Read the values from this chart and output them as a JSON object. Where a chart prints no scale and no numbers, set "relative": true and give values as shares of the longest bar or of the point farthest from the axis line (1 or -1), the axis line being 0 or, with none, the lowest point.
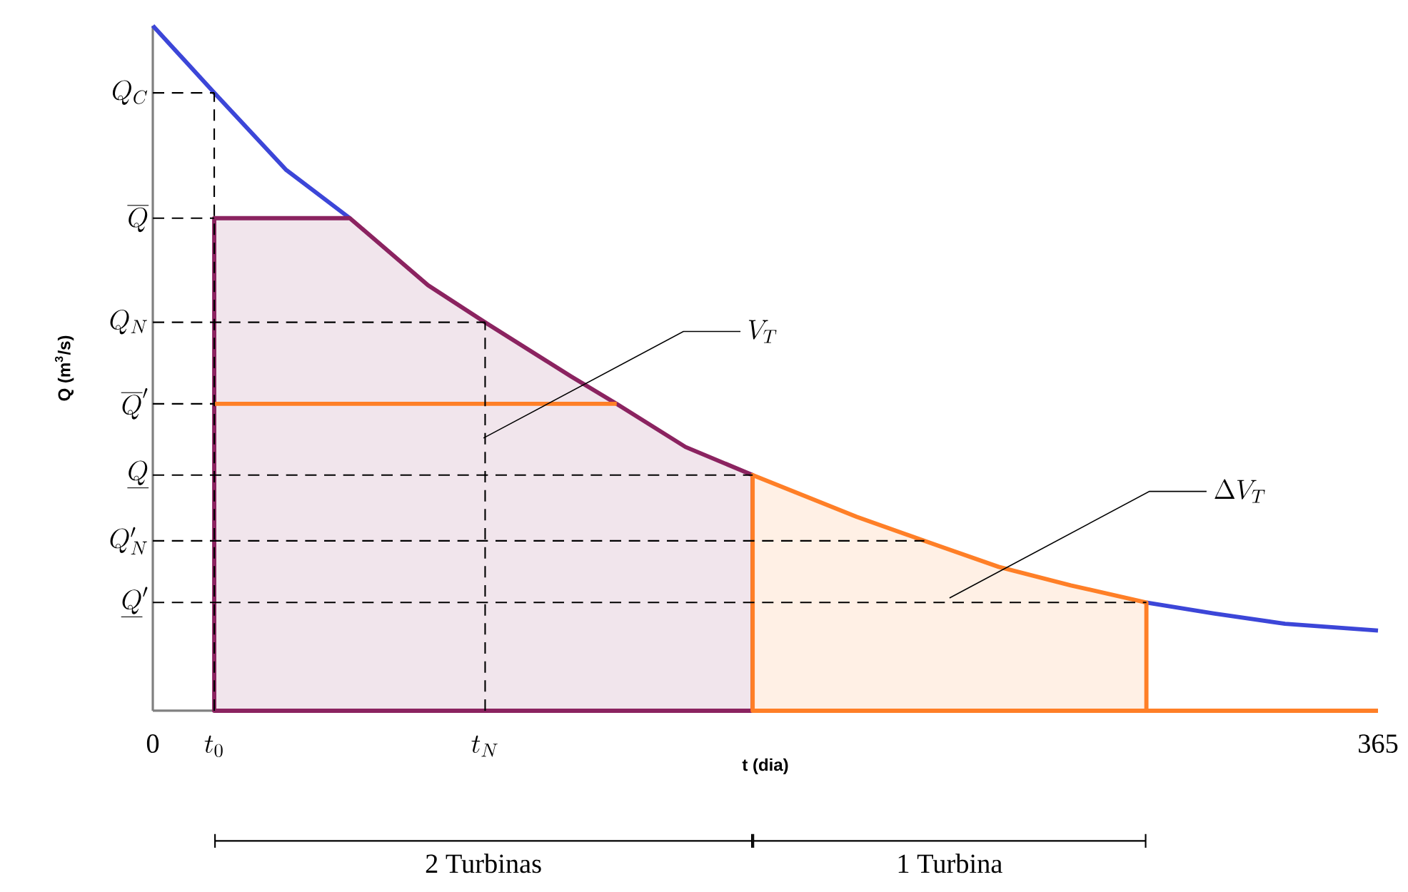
{
  "chart_data": {
    "type": "line",
    "relative": true,
    "xlabel": "t (dia)",
    "ylabel": "Q (m$^{3}$/s)",
    "xlim": [
      0,
      365
    ],
    "xticks": [
      0,
      365
    ],
    "series": [
      {
        "color": "#3c46d8",
        "x": [
          0,
          18.3,
          39.6,
          58.7,
          82,
          99,
          124.6,
          138.2,
          158.7,
          178.7,
          209.7,
          231,
          252,
          273.5,
          296,
          316,
          337.3,
          365
        ],
        "values": [
          1.0,
          0.902,
          0.79,
          0.719,
          null,
          null,
          null,
          null,
          null,
          null,
          null,
          null,
          null,
          null,
          0.158,
          0.142,
          0.127,
          0.117
        ]
      },
      {
        "color": "#ff7f27",
        "x": [
          296,
          365
        ],
        "values": [
          0,
          0
        ]
      },
      {
        "type": "area",
        "name": "V_T",
        "color": "#8b2360",
        "x": [
          18.3,
          58.7,
          82,
          99,
          124.6,
          138.2,
          158.7,
          178.7
        ],
        "values": [
          0.719,
          0.719,
          0.621,
          0.567,
          0.488,
          0.448,
          0.385,
          0.344
        ]
      },
      {
        "type": "area",
        "name": "\\Delta V_T",
        "color": "#ff7f27",
        "x": [
          178.7,
          209.7,
          231,
          252,
          273.5,
          296
        ],
        "values": [
          0.344,
          0.283,
          0.246,
          0.21,
          0.183,
          0.158
        ]
      },
      {
        "color": "#ff7f27",
        "x": [
          18.3,
          138.2
        ],
        "values": [
          0.448,
          0.448
        ]
      }
    ],
    "ref_lines": [
      {
        "axis": "y",
        "value": 0.902,
        "label": "Q_C",
        "line_style": "dashed"
      },
      {
        "axis": "y",
        "value": 0.719,
        "label": "\\overline{Q}",
        "line_style": "dashed"
      },
      {
        "axis": "y",
        "value": 0.567,
        "label": "Q_N",
        "line_style": "dashed"
      },
      {
        "axis": "y",
        "value": 0.448,
        "label": "\\overline{Q}'",
        "line_style": "dashed"
      },
      {
        "axis": "y",
        "value": 0.344,
        "label": "\\underline{Q}",
        "line_style": "dashed"
      },
      {
        "axis": "y",
        "value": 0.248,
        "label": "Q'_N",
        "line_style": "dashed"
      },
      {
        "axis": "y",
        "value": 0.158,
        "label": "\\underline{Q}'",
        "line_style": "dashed"
      },
      {
        "axis": "x",
        "value": 18.3,
        "label": "t_0",
        "line_style": "dashed"
      },
      {
        "axis": "x",
        "value": 99,
        "label": "t_N",
        "line_style": "dashed"
      }
    ],
    "annotations": [
      "2 Turbinas",
      "1 Turbina"
    ],
    "grid": false
  }
}
